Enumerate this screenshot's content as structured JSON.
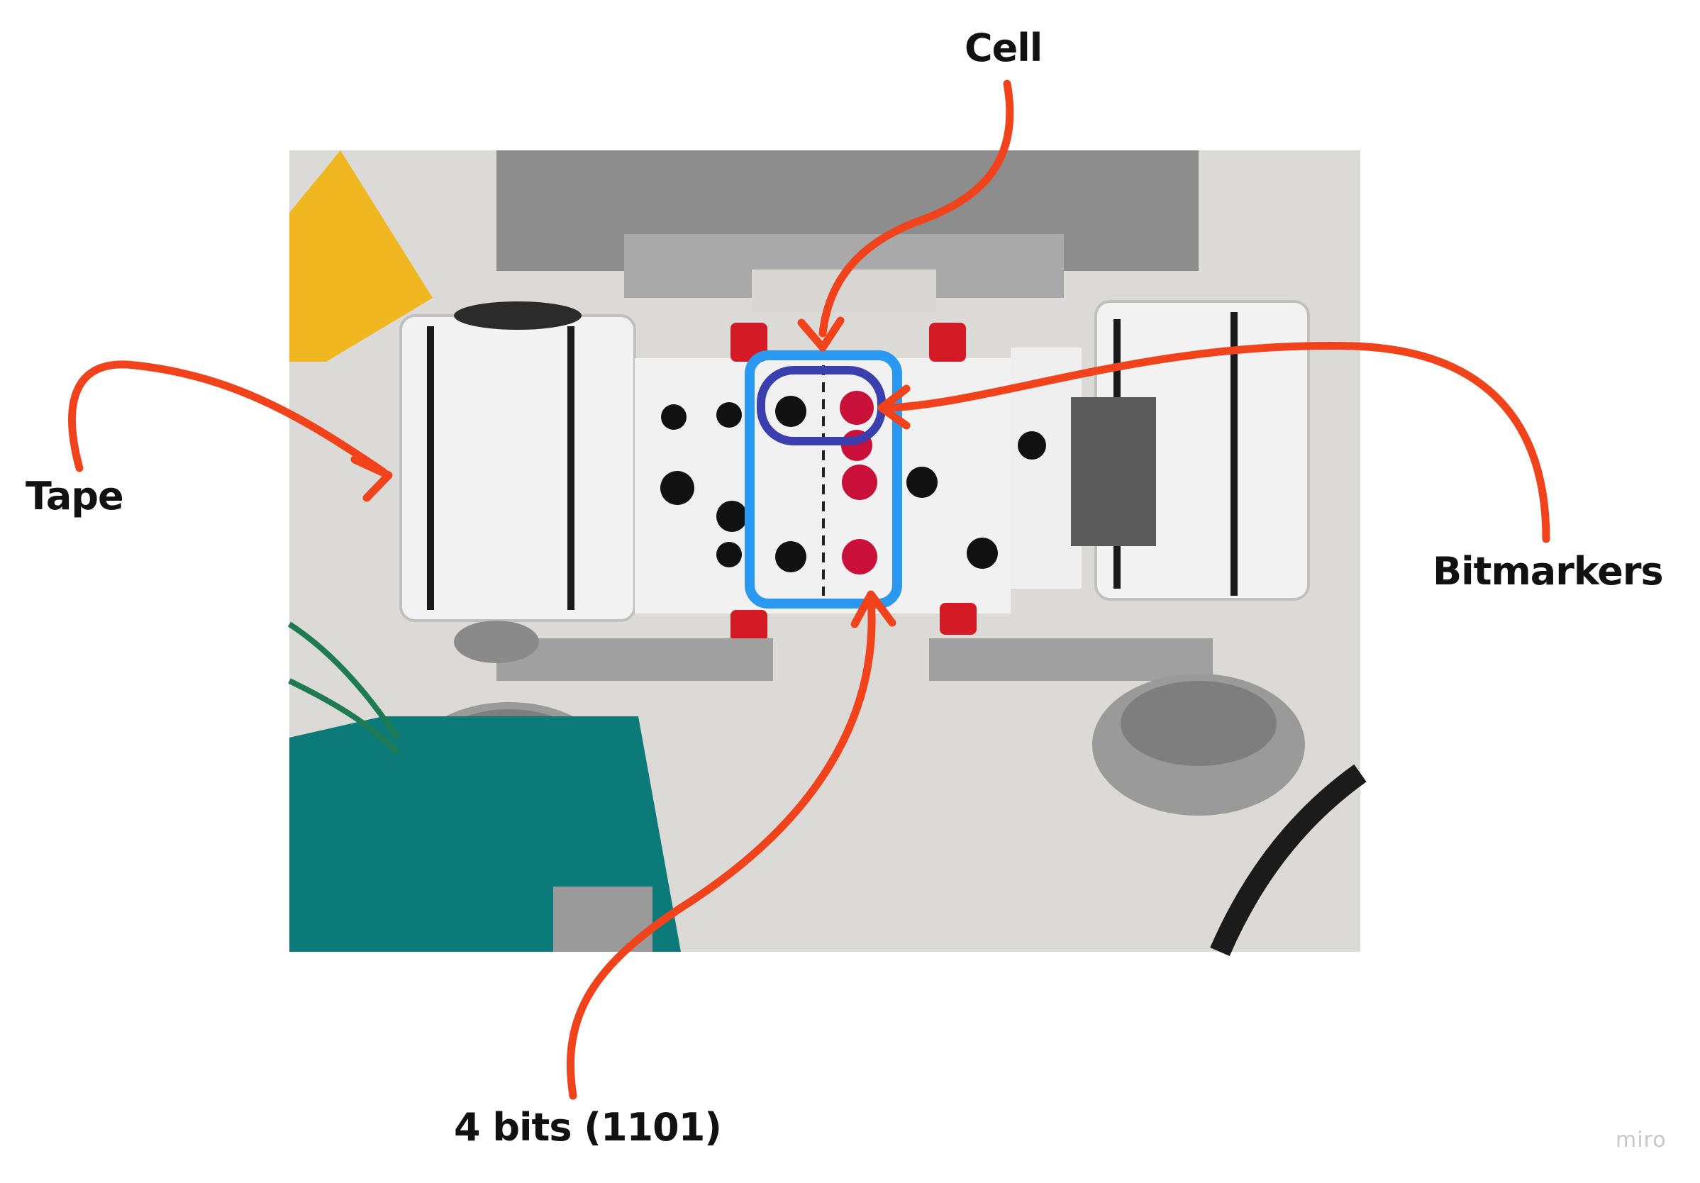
{
  "labels": {
    "cell": "Cell",
    "tape": "Tape",
    "bitmarkers": "Bitmarkers",
    "bits": "4 bits (1101)"
  },
  "watermark": "miro",
  "colors": {
    "arrow": "#f0431c",
    "cell_box": "#2a98ef",
    "bitmarker_box": "#3b3fae",
    "label_text": "#111111"
  },
  "icons": {
    "annotation": "arrow-icon"
  }
}
